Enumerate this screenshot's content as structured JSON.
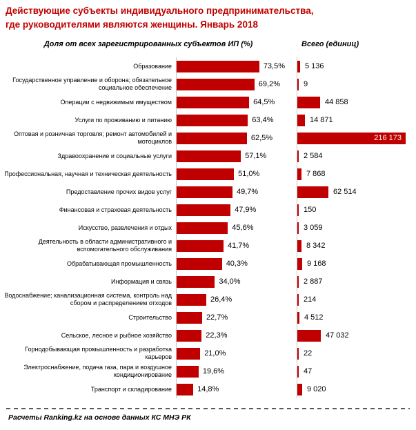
{
  "page": {
    "title_line1": "Действующие субъекты индивидуального предпринимательства,",
    "title_line2": "где руководителями являются женщины. Январь 2018",
    "source_note": "Расчеты Ranking.kz на основе данных КС МНЭ РК"
  },
  "headers": {
    "share": "Доля от всех зарегистрированных субъектов ИП (%)",
    "total": "Всего (единиц)"
  },
  "colors": {
    "bar": "#C00000",
    "title": "#C00000",
    "axis": "#C6C6C6",
    "inside_label": "#FFFFFF",
    "text": "#000000"
  },
  "chart_data": {
    "type": "bar",
    "orientation": "horizontal",
    "title": "Действующие субъекты индивидуального предпринимательства, где руководителями являются женщины. Январь 2018",
    "grid": false,
    "legend": false,
    "categories": [
      "Образование",
      "Государственное управление и оборона; обязательное социальное обеспечение",
      "Операции с недвижимым имуществом",
      "Услуги по проживанию и питанию",
      "Оптовая и розничная торговля; ремонт автомобилей и мотоциклов",
      "Здравоохранение и социальные услуги",
      "Профессиональная, научная и техническая деятельность",
      "Предоставление прочих видов услуг",
      "Финансовая и страховая деятельность",
      "Искусство, развлечения и отдых",
      "Деятельность в области административного и вспомогательного обслуживания",
      "Обрабатывающая промышленность",
      "Информация и связь",
      "Водоснабжение; канализационная система, контроль над сбором и распределением отходов",
      "Строительство",
      "Сельское, лесное и рыбное хозяйство",
      "Горнодобывающая промышленность и разработка карьеров",
      "Электроснабжение, подача газа, пара и воздушное кондиционирование",
      "Транспорт и складирование"
    ],
    "series": [
      {
        "name": "Доля от всех зарегистрированных субъектов ИП (%)",
        "unit": "%",
        "xlim": [
          0,
          100
        ],
        "values": [
          73.5,
          69.2,
          64.5,
          63.4,
          62.5,
          57.1,
          51.0,
          49.7,
          47.9,
          45.6,
          41.7,
          40.3,
          34.0,
          26.4,
          22.7,
          22.3,
          21.0,
          19.6,
          14.8
        ],
        "labels": [
          "73,5%",
          "69,2%",
          "64,5%",
          "63,4%",
          "62,5%",
          "57,1%",
          "51,0%",
          "49,7%",
          "47,9%",
          "45,6%",
          "41,7%",
          "40,3%",
          "34,0%",
          "26,4%",
          "22,7%",
          "22,3%",
          "21,0%",
          "19,6%",
          "14,8%"
        ]
      },
      {
        "name": "Всего (единиц)",
        "unit": "единиц",
        "xlim": [
          0,
          216173
        ],
        "values": [
          5136,
          9,
          44858,
          14871,
          216173,
          2584,
          7868,
          62514,
          150,
          3059,
          8342,
          9168,
          2887,
          214,
          4512,
          47032,
          22,
          47,
          9020
        ],
        "labels": [
          "5 136",
          "9",
          "44 858",
          "14 871",
          "216 173",
          "2 584",
          "7 868",
          "62 514",
          "150",
          "3 059",
          "8 342",
          "9 168",
          "2 887",
          "214",
          "4 512",
          "47 032",
          "22",
          "47",
          "9 020"
        ]
      }
    ]
  }
}
